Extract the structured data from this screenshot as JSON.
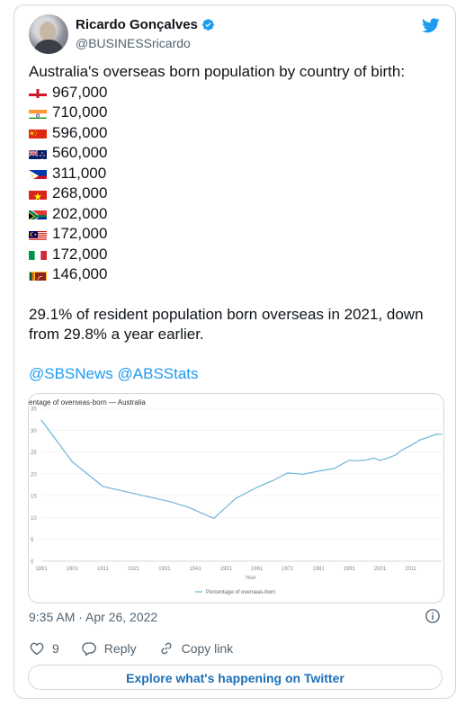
{
  "author": {
    "name": "Ricardo Gonçalves",
    "handle": "@BUSINESSricardo"
  },
  "tweet": {
    "intro": "Australia's overseas born population by country of birth:",
    "rows": [
      {
        "flag": "england",
        "value": "967,000"
      },
      {
        "flag": "india",
        "value": "710,000"
      },
      {
        "flag": "china",
        "value": "596,000"
      },
      {
        "flag": "new-zealand",
        "value": "560,000"
      },
      {
        "flag": "philippines",
        "value": "311,000"
      },
      {
        "flag": "vietnam",
        "value": "268,000"
      },
      {
        "flag": "south-africa",
        "value": "202,000"
      },
      {
        "flag": "malaysia",
        "value": "172,000"
      },
      {
        "flag": "italy",
        "value": "172,000"
      },
      {
        "flag": "sri-lanka",
        "value": "146,000"
      }
    ],
    "paragraph": "29.1% of resident population born overseas in 2021, down from 29.8% a year earlier.",
    "mentions": "@SBSNews @ABSStats"
  },
  "chart_data": {
    "type": "line",
    "title": "entage of overseas-born — Australia",
    "xlabel": "Year",
    "ylabel": "",
    "ylim": [
      0,
      35
    ],
    "xlim": [
      1891,
      2021
    ],
    "yticks": [
      "0",
      "5",
      "10",
      "15",
      "20",
      "25",
      "30",
      "35"
    ],
    "xticks": [
      "1891",
      "1901",
      "1911",
      "1921",
      "1931",
      "1941",
      "1951",
      "1961",
      "1971",
      "1981",
      "1991",
      "2001",
      "2011"
    ],
    "legend_position": "bottom",
    "series": [
      {
        "name": "Percentage of overseas-born",
        "color": "#6fb4d8",
        "x": [
          1891,
          1901,
          1911,
          1921,
          1933,
          1939,
          1947,
          1954,
          1961,
          1966,
          1971,
          1976,
          1981,
          1986,
          1991,
          1993,
          1996,
          1999,
          2001,
          2003,
          2006,
          2008,
          2011,
          2014,
          2016,
          2019,
          2021
        ],
        "values": [
          32.3,
          22.8,
          17.1,
          15.5,
          13.6,
          12.3,
          9.8,
          14.3,
          16.9,
          18.4,
          20.2,
          19.9,
          20.6,
          21.2,
          23.1,
          23.0,
          23.1,
          23.6,
          23.1,
          23.5,
          24.3,
          25.4,
          26.5,
          27.8,
          28.2,
          29.0,
          29.1
        ]
      }
    ]
  },
  "meta": {
    "timestamp": "9:35 AM · Apr 26, 2022"
  },
  "actions": {
    "likes": "9",
    "reply": "Reply",
    "copy_link": "Copy link"
  },
  "explore_label": "Explore what's happening on Twitter",
  "colors": {
    "accent": "#1d9bf0",
    "explore_text": "#1d6fb5",
    "line": "#6fb4d8"
  }
}
